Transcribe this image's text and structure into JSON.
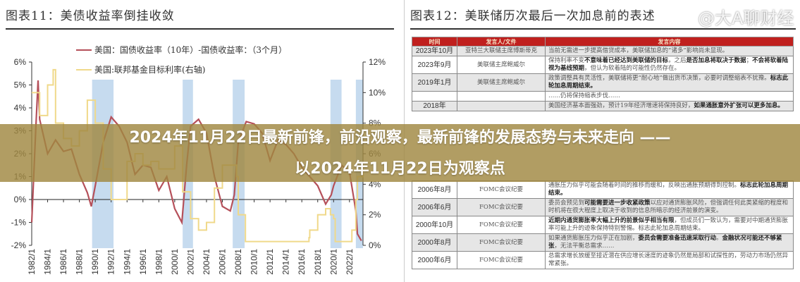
{
  "banner": {
    "line1": "2024年11月22日最新前锋，前沿观察，最新前锋的发展态势与未来走向 ——",
    "line2": "以2024年11月22日为观察点"
  },
  "watermark": "@大A聊财经",
  "colors": {
    "spread": "#b5505a",
    "fedfunds": "#f0d98a",
    "shade": "#c6dbef",
    "table_header": "#c0201e",
    "banner": "#a08741"
  },
  "chart_data": {
    "type": "line",
    "title": "图表11：美债收益率倒挂收敛",
    "legend": [
      "美国：国债收益率（10年）-国债收益率：（3个月）",
      "美国:联邦基金目标利率(右轴)"
    ],
    "legend_placement": "top-left",
    "y_ticks": [
      "6%",
      "5%",
      "4%",
      "3%",
      "2%",
      "1%",
      "0%",
      "-1%",
      "-2%"
    ],
    "ylim": [
      -2,
      6
    ],
    "y2_ticks": [
      "12%",
      "10%",
      "8%",
      "6%",
      "4%",
      "2%",
      "0%"
    ],
    "y2lim": [
      0,
      12
    ],
    "x_ticks": [
      "1982/1",
      "1984/1",
      "1986/1",
      "1988/1",
      "1990/1",
      "1992/1",
      "1994/1",
      "1996/1",
      "1998/1",
      "2000/1",
      "2002/1",
      "2004/1",
      "2006/1",
      "2008/1",
      "2010/1",
      "2012/1",
      "2014/1",
      "2016/1",
      "2018/1",
      "2020/1",
      "2022/1"
    ],
    "xlim": [
      1982,
      2023.7
    ],
    "shaded_periods": [
      [
        1989.6,
        1992.3
      ],
      [
        2001,
        2002.3
      ],
      [
        2007.3,
        2008.8
      ],
      [
        2019.6,
        2021
      ],
      [
        2022.8,
        2023.7
      ]
    ],
    "series": [
      {
        "name": "美国：国债收益率（10年）-国债收益率：（3个月）",
        "axis": "left",
        "x": [
          1982,
          1982.5,
          1982.8,
          1983,
          1984,
          1985,
          1986,
          1987,
          1988,
          1989,
          1989.5,
          1990,
          1991,
          1992,
          1993,
          1994,
          1995,
          1996,
          1997,
          1998,
          1999,
          2000,
          2000.9,
          2001.5,
          2002,
          2003,
          2004,
          2005,
          2006,
          2007,
          2007.5,
          2008,
          2009,
          2010,
          2011,
          2012,
          2013,
          2014,
          2015,
          2016,
          2017,
          2018,
          2019,
          2019.7,
          2020,
          2021,
          2022,
          2022.8,
          2023,
          2023.5
        ],
        "y": [
          -1,
          3,
          5.2,
          3.5,
          2,
          2.6,
          2.1,
          2.2,
          1.1,
          0.3,
          -0.3,
          0.6,
          2.5,
          3.6,
          3.2,
          2.5,
          1.1,
          1.5,
          1.4,
          0.4,
          1,
          -0.4,
          -1,
          1.5,
          3.2,
          3.5,
          2.9,
          1,
          -0.3,
          -0.5,
          0.2,
          2.5,
          3.4,
          3.3,
          2.9,
          1.7,
          2.6,
          2.4,
          2,
          1.4,
          1,
          0.6,
          -0.2,
          0.2,
          0.6,
          1.5,
          1.2,
          -0.5,
          -1.5,
          -1.8
        ]
      },
      {
        "name": "美国:联邦基金目标利率(右轴)",
        "axis": "right",
        "x": [
          1982,
          1983,
          1984,
          1984.7,
          1985,
          1986,
          1987,
          1988,
          1989,
          1990,
          1991,
          1992,
          1993,
          1994,
          1995,
          1996,
          1997,
          1998,
          1999,
          2000,
          2001,
          2002,
          2003,
          2004,
          2005,
          2006,
          2007,
          2007.8,
          2008,
          2008.9,
          2015.9,
          2016.9,
          2017,
          2018,
          2019,
          2019.6,
          2020,
          2020.2,
          2022,
          2022.3,
          2022.8,
          2023,
          2023.7
        ],
        "y": [
          10,
          8.5,
          10.5,
          11.5,
          8,
          7,
          6.5,
          7.5,
          9.5,
          8,
          5,
          3,
          3,
          5.5,
          6,
          5.25,
          5.5,
          5,
          5,
          6.5,
          3.5,
          1.75,
          1,
          1.5,
          3.75,
          5.25,
          5.25,
          4.5,
          2,
          0.25,
          0.25,
          0.5,
          1,
          2,
          2.4,
          2,
          1.75,
          0.25,
          0.25,
          1,
          3,
          4.5,
          5.4
        ]
      }
    ]
  },
  "table": {
    "title": "图表12：美联储历次最后一次加息前的表述",
    "headers": [
      "时间",
      "发言人/文件",
      "发言内容"
    ],
    "rows": [
      {
        "date": "2023年10月",
        "speaker": "亚特兰大联储主席博斯蒂克",
        "content": [
          {
            "t": "当前无需进一步提高借贷成本，美联储加息的“诸多”影响尚未显现。"
          }
        ]
      },
      {
        "date": "2023年9月",
        "speaker": "美联储主席鲍威尔",
        "content": [
          {
            "t": "保持利率不变"
          },
          {
            "t": "不意味着已经达到美联储的目标",
            "b": true
          },
          {
            "t": "，之后"
          },
          {
            "t": "是否加息将取决于数据",
            "b": true
          },
          {
            "t": "；"
          },
          {
            "t": "不会将软着陆视为基线预期",
            "b": true
          },
          {
            "t": "，但认为软着陆的可能性仍然存在。"
          }
        ]
      },
      {
        "date": "2019年1月",
        "speaker": "美联储主席鲍威尔",
        "content": [
          {
            "t": "政策调整具有灵活性，美联储将更“耐心地”做出货币决策，必要时调整缩表不犹豫。"
          },
          {
            "t": "标志此轮加息周期结束。",
            "b": true
          }
        ]
      },
      {
        "date": "",
        "speaker": "",
        "content": [
          {
            "t": "……仍将保持缩表步伐……"
          }
        ]
      },
      {
        "date": "2018年",
        "speaker": "",
        "content": [
          {
            "t": "美国经济基本面强劲，预计19年经济增速将保持良好，"
          },
          {
            "t": "如果通胀意外扩张可以更多加息。",
            "b": true
          }
        ]
      },
      {
        "date": "2006年8月",
        "speaker": "FOMC会议纪要",
        "content": [
          {
            "t": "通胀压力似乎可能会随着时间的推移而缓和，反映出通胀预期得到控制。"
          },
          {
            "t": "标志此轮加息周期结束。",
            "b": true
          }
        ]
      },
      {
        "date": "2006年6月",
        "speaker": "FOMC会议纪要",
        "content": [
          {
            "t": "委员会预见到"
          },
          {
            "t": "可能需要进一步收紧政策",
            "b": true
          },
          {
            "t": "以应对通货膨胀风险，但强调任何此类紧缩的程度和时机将在很大程度上取决于收到的信息所暗示的经济前景的演变。"
          }
        ]
      },
      {
        "date": "2000年10月",
        "speaker": "FOMC会议纪要",
        "content": [
          {
            "t": "近期内通货膨胀率大幅上升的前景似乎相当有限",
            "b": true
          },
          {
            "t": "，但成员们一致认为，需要对中期通货膨胀率可能上升的迹象保持特别警惕。标志此轮加息周期结束。"
          }
        ]
      },
      {
        "date": "2000年8月",
        "speaker": "FOMC会议纪要",
        "content": [
          {
            "t": "如果通货膨胀压力似乎正在加剧，"
          },
          {
            "t": "委员会需要准备迅速采取行动",
            "b": true
          },
          {
            "t": "。"
          },
          {
            "t": "金融状况可能还不够紧张",
            "b": true
          },
          {
            "t": "，无法平衡总需求……"
          }
        ]
      },
      {
        "date": "2000年6月",
        "speaker": "FOMC会议纪要",
        "content": [
          {
            "t": "总需求增长放缓至接近潜在供应增长速度的迹象仍然是局部和试探性的，劳动力市场仍然异常紧张。"
          }
        ]
      }
    ]
  }
}
